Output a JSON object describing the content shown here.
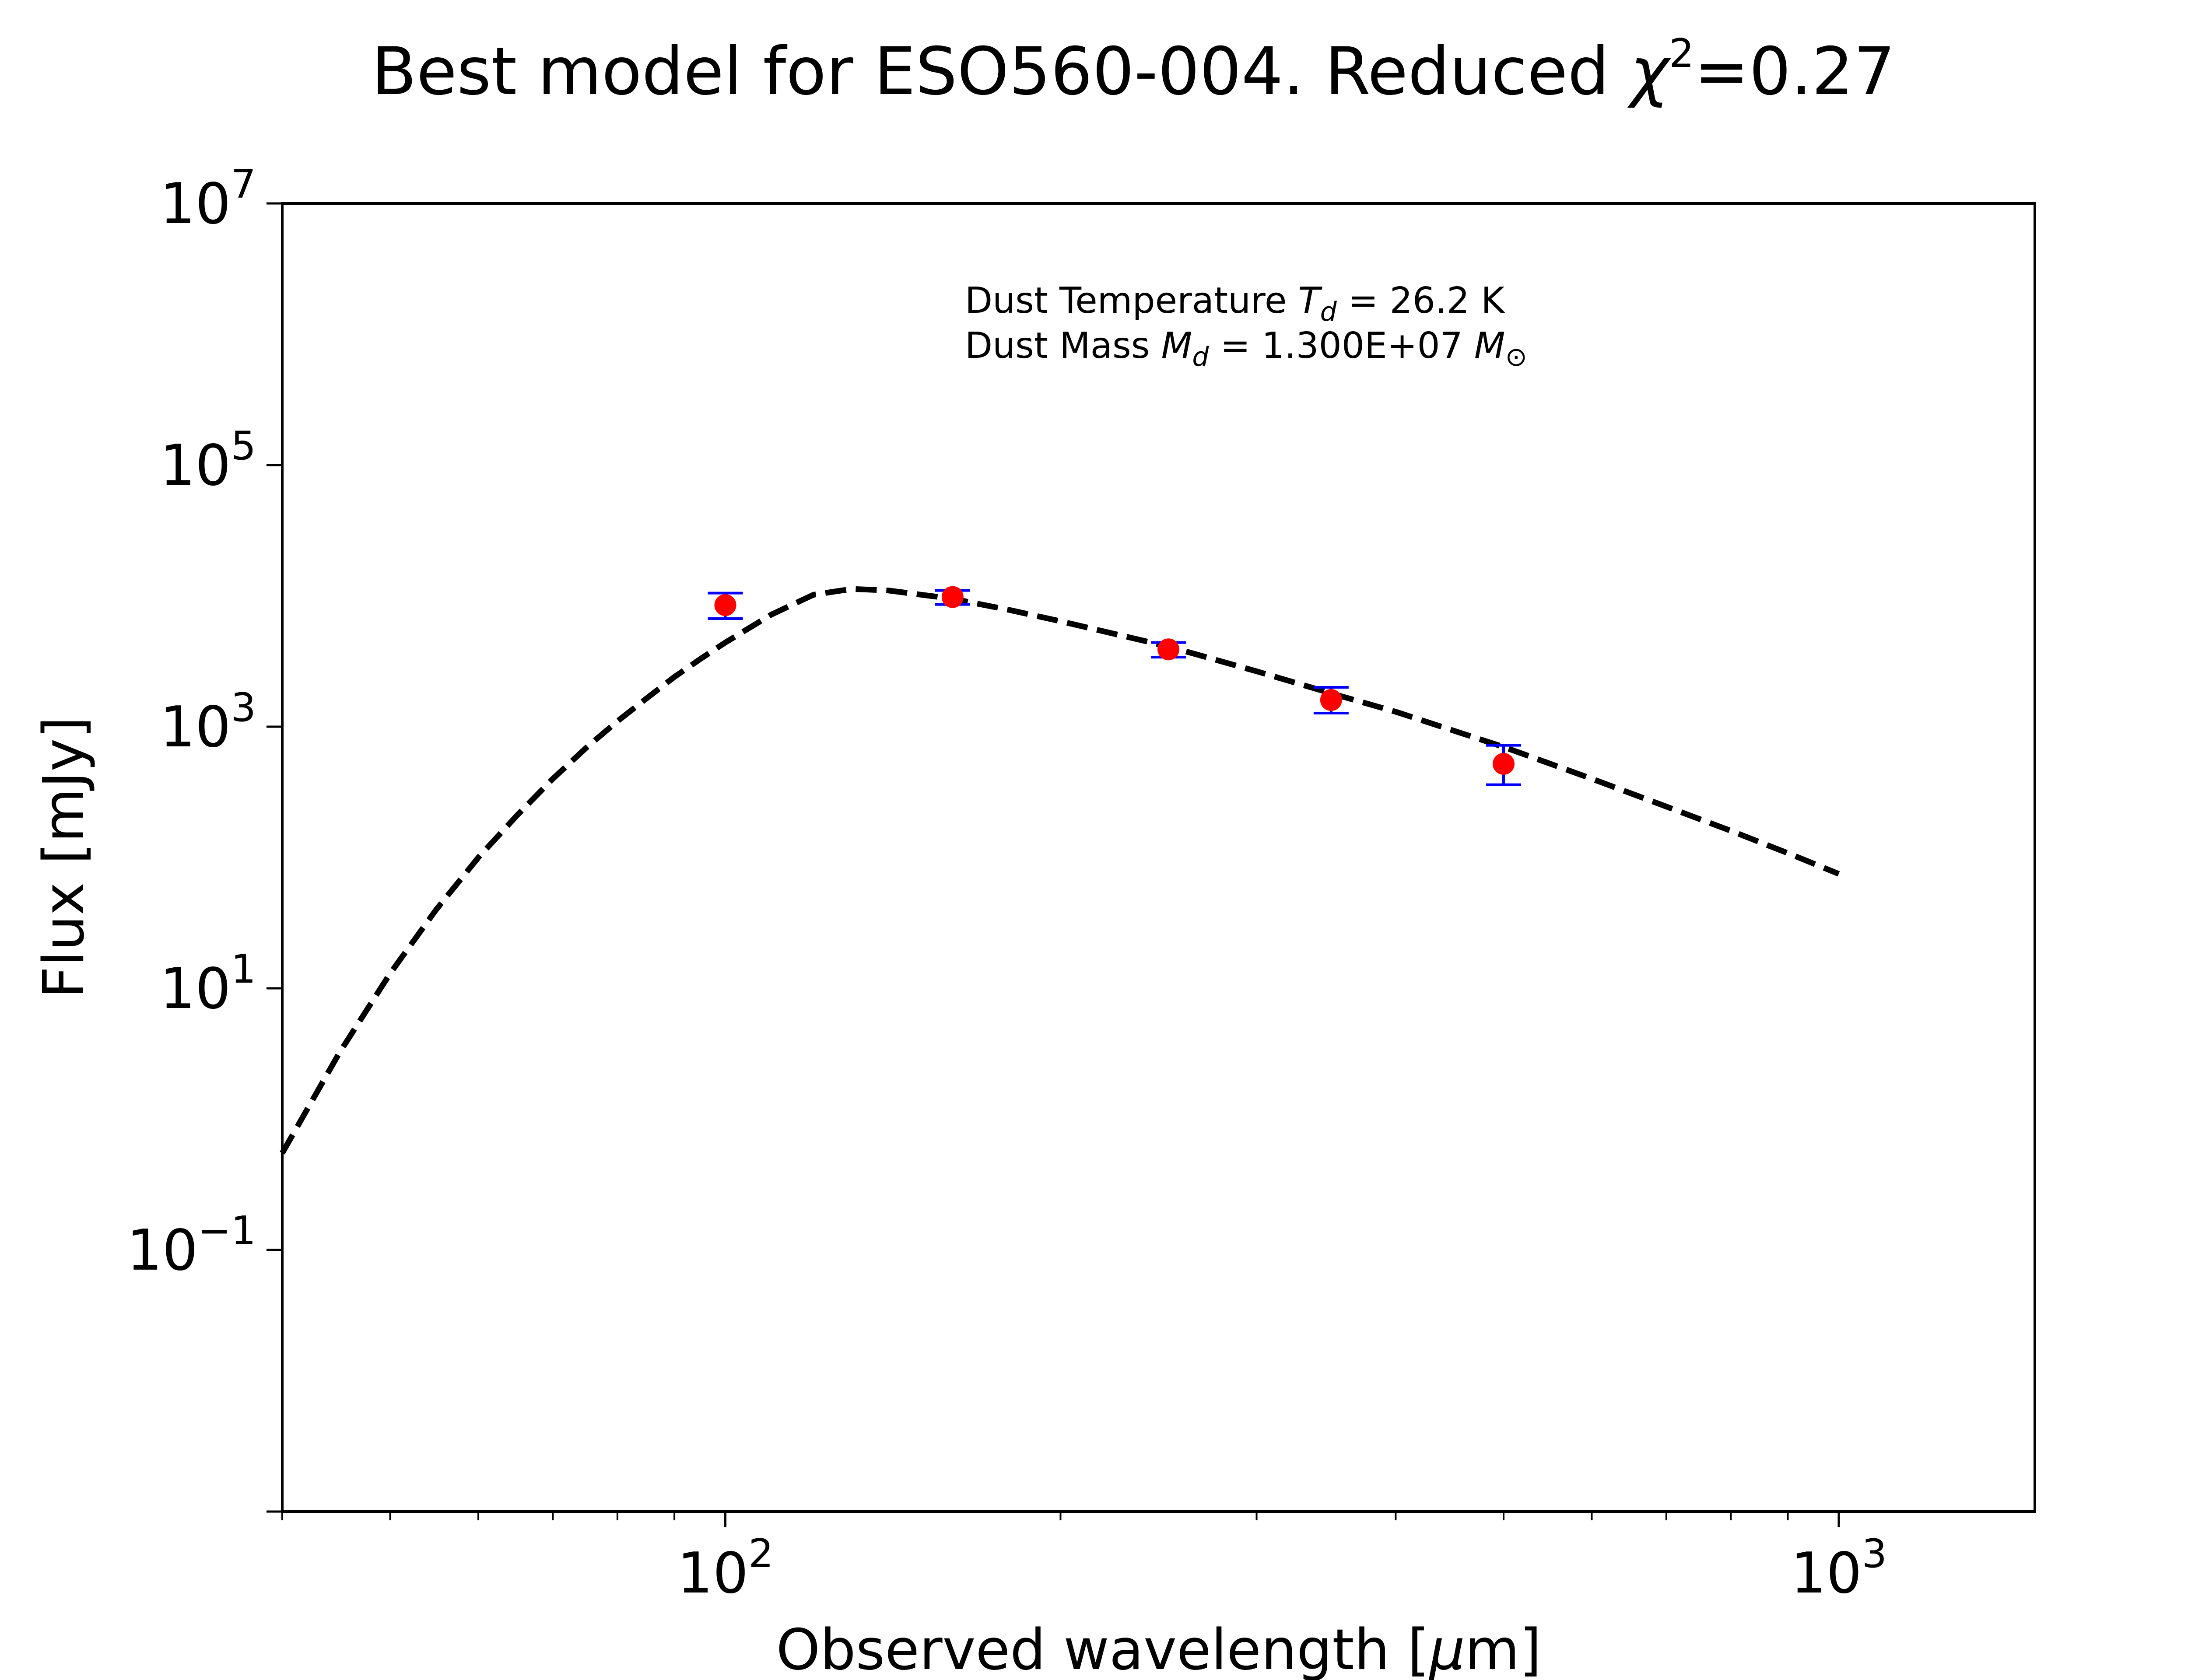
{
  "chart_data": {
    "type": "scatter",
    "title": {
      "prefix": "Best model for ESO560-004. Reduced ",
      "symbol": "χ",
      "superscript": "2",
      "suffix": "=0.27"
    },
    "xlabel": {
      "prefix": "Observed wavelength [",
      "unit_italic": "μ",
      "unit_rest": "m]"
    },
    "ylabel": "Flux [mJy]",
    "xscale": "log",
    "yscale": "log",
    "xlim": [
      40,
      1500
    ],
    "ylim": [
      0.001,
      10000000
    ],
    "grid": false,
    "x_ticks": [
      {
        "value": 100,
        "base": "10",
        "exp": "2"
      },
      {
        "value": 1000,
        "base": "10",
        "exp": "3"
      }
    ],
    "y_ticks": [
      {
        "value": 0.1,
        "base": "10",
        "exp": "−1"
      },
      {
        "value": 10,
        "base": "10",
        "exp": "1"
      },
      {
        "value": 1000,
        "base": "10",
        "exp": "3"
      },
      {
        "value": 100000,
        "base": "10",
        "exp": "5"
      },
      {
        "value": 10000000,
        "base": "10",
        "exp": "7"
      }
    ],
    "annotation": {
      "line1_prefix": "Dust Temperature ",
      "line1_sym": "T",
      "line1_sub": "d",
      "line1_suffix": " = 26.2 K",
      "line2_prefix": "Dust Mass ",
      "line2_sym": "M",
      "line2_sub": "d",
      "line2_mid": " = 1.300E+07 ",
      "line2_unit_sym": "M",
      "line2_unit_sub": "⊙"
    },
    "series": [
      {
        "kind": "model",
        "style": "dashed",
        "color": "#000000",
        "x": [
          40,
          45,
          50,
          55,
          60,
          65,
          70,
          75,
          80,
          85,
          90,
          95,
          100,
          110,
          120,
          130,
          140,
          160,
          180,
          200,
          250,
          300,
          350,
          400,
          500,
          600,
          700,
          800,
          900,
          1000
        ],
        "y": [
          0.55,
          3.2,
          13,
          40,
          100,
          210,
          400,
          690,
          1100,
          1650,
          2400,
          3300,
          4400,
          7200,
          10200,
          11300,
          11000,
          9500,
          7800,
          6400,
          4100,
          2650,
          1800,
          1300,
          700,
          400,
          245,
          160,
          108,
          75
        ]
      },
      {
        "kind": "data",
        "marker_color": "#ff0000",
        "errorbar_color": "#0000ff",
        "points": [
          {
            "x": 100,
            "y": 8500,
            "yerr_low": 1800,
            "yerr_high": 2000
          },
          {
            "x": 160,
            "y": 9800,
            "yerr_low": 1200,
            "yerr_high": 1200
          },
          {
            "x": 250,
            "y": 3900,
            "yerr_low": 500,
            "yerr_high": 500
          },
          {
            "x": 350,
            "y": 1600,
            "yerr_low": 330,
            "yerr_high": 400
          },
          {
            "x": 500,
            "y": 520,
            "yerr_low": 160,
            "yerr_high": 200
          }
        ]
      }
    ]
  }
}
